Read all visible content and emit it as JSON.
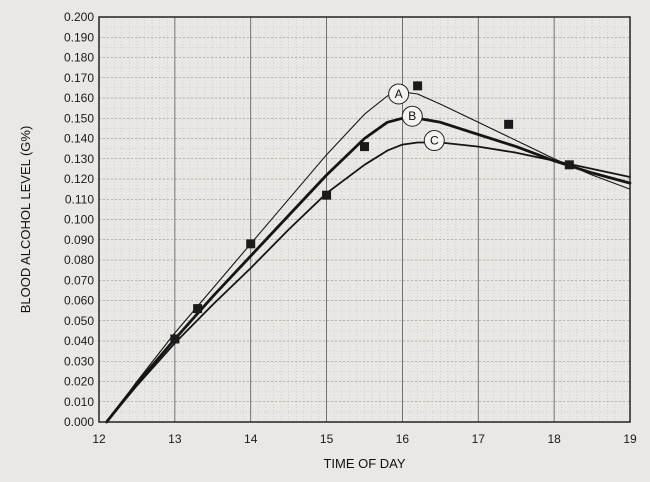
{
  "chart_data": {
    "type": "line",
    "title": "",
    "xlabel": "TIME OF DAY",
    "ylabel": "BLOOD ALCOHOL LEVEL (G%)",
    "xlim": [
      12,
      19
    ],
    "ylim": [
      0,
      0.2
    ],
    "grid": true,
    "x_ticks": [
      "12",
      "13",
      "14",
      "15",
      "16",
      "17",
      "18",
      "19"
    ],
    "y_ticks": [
      "0.000",
      "0.010",
      "0.020",
      "0.030",
      "0.040",
      "0.050",
      "0.060",
      "0.070",
      "0.080",
      "0.090",
      "0.100",
      "0.110",
      "0.120",
      "0.130",
      "0.140",
      "0.150",
      "0.160",
      "0.170",
      "0.180",
      "0.190",
      "0.200"
    ],
    "series": [
      {
        "name": "A",
        "style": "thin",
        "x": [
          12.1,
          12.5,
          13.0,
          13.5,
          14.0,
          14.5,
          15.0,
          15.5,
          15.8,
          16.0,
          16.2,
          16.5,
          17.0,
          17.5,
          18.0,
          18.5,
          19.0
        ],
        "y": [
          0.0,
          0.02,
          0.044,
          0.066,
          0.088,
          0.11,
          0.132,
          0.152,
          0.161,
          0.163,
          0.162,
          0.157,
          0.148,
          0.139,
          0.13,
          0.122,
          0.115
        ]
      },
      {
        "name": "B",
        "style": "bold",
        "x": [
          12.1,
          12.5,
          13.0,
          13.5,
          14.0,
          14.5,
          15.0,
          15.5,
          15.8,
          16.0,
          16.2,
          16.5,
          17.0,
          17.5,
          18.0,
          18.5,
          19.0
        ],
        "y": [
          0.0,
          0.019,
          0.041,
          0.062,
          0.082,
          0.102,
          0.122,
          0.14,
          0.148,
          0.15,
          0.15,
          0.148,
          0.142,
          0.136,
          0.129,
          0.123,
          0.118
        ]
      },
      {
        "name": "C",
        "style": "medium",
        "x": [
          12.1,
          12.5,
          13.0,
          13.5,
          14.0,
          14.5,
          15.0,
          15.5,
          15.8,
          16.0,
          16.2,
          16.5,
          17.0,
          17.5,
          18.0,
          18.5,
          19.0
        ],
        "y": [
          0.0,
          0.018,
          0.039,
          0.058,
          0.076,
          0.095,
          0.113,
          0.127,
          0.134,
          0.137,
          0.138,
          0.138,
          0.136,
          0.133,
          0.129,
          0.125,
          0.121
        ]
      }
    ],
    "points": {
      "name": "measurements",
      "x": [
        13.0,
        13.3,
        14.0,
        15.0,
        15.5,
        16.2,
        17.4,
        18.2
      ],
      "y": [
        0.041,
        0.056,
        0.088,
        0.112,
        0.136,
        0.166,
        0.147,
        0.127
      ]
    },
    "labels": [
      {
        "text": "A",
        "x": 15.95,
        "y": 0.162
      },
      {
        "text": "B",
        "x": 16.13,
        "y": 0.151
      },
      {
        "text": "C",
        "x": 16.42,
        "y": 0.139
      }
    ]
  }
}
